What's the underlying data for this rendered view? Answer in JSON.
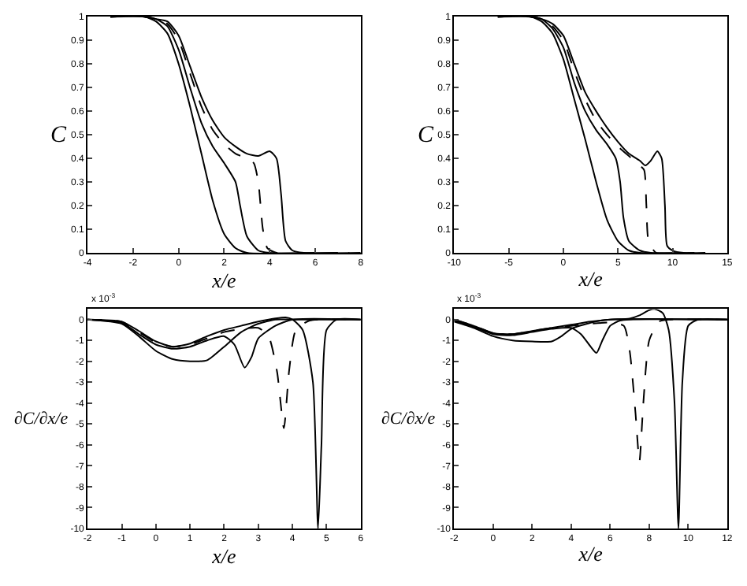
{
  "chart_data": [
    {
      "type": "line",
      "xlabel": "x/e",
      "ylabel": "C",
      "xlim": [
        -4,
        8
      ],
      "xticks": [
        -4,
        -2,
        0,
        2,
        4,
        6,
        8
      ],
      "ylim": [
        0,
        1
      ],
      "yticks": [
        0,
        0.1,
        0.2,
        0.3,
        0.4,
        0.5,
        0.6,
        0.7,
        0.8,
        0.9,
        1
      ],
      "series": [
        {
          "color": "#000000",
          "line_style": "solid",
          "x": [
            -3,
            -1.5,
            -1,
            -0.5,
            0,
            0.5,
            1,
            1.5,
            2,
            2.5,
            3,
            6
          ],
          "values": [
            1,
            1,
            0.98,
            0.93,
            0.8,
            0.62,
            0.42,
            0.22,
            0.08,
            0.02,
            0,
            0
          ]
        },
        {
          "color": "#000000",
          "line_style": "solid",
          "x": [
            -3,
            -1.5,
            -1,
            -0.5,
            0,
            0.5,
            1,
            1.5,
            2,
            2.5,
            2.7,
            3,
            3.5,
            4,
            7
          ],
          "values": [
            1,
            1,
            0.99,
            0.96,
            0.86,
            0.7,
            0.55,
            0.45,
            0.38,
            0.3,
            0.2,
            0.07,
            0.01,
            0,
            0
          ]
        },
        {
          "color": "#000000",
          "line_style": "dashed",
          "x": [
            -3,
            -1.5,
            -1,
            -0.5,
            0,
            0.5,
            1,
            1.5,
            2,
            2.5,
            3,
            3.3,
            3.5,
            3.7,
            3.9,
            4.3,
            7.5
          ],
          "values": [
            1,
            1,
            0.99,
            0.97,
            0.9,
            0.76,
            0.62,
            0.52,
            0.46,
            0.42,
            0.4,
            0.38,
            0.3,
            0.1,
            0.02,
            0,
            0
          ]
        },
        {
          "color": "#000000",
          "line_style": "solid",
          "x": [
            -3,
            -1.5,
            -1,
            -0.5,
            0,
            0.5,
            1,
            1.5,
            2,
            2.5,
            3,
            3.5,
            4,
            4.3,
            4.5,
            4.7,
            5,
            5.5,
            8
          ],
          "values": [
            1,
            1,
            0.99,
            0.98,
            0.92,
            0.79,
            0.66,
            0.56,
            0.49,
            0.45,
            0.42,
            0.41,
            0.43,
            0.4,
            0.25,
            0.05,
            0.01,
            0,
            0
          ]
        }
      ]
    },
    {
      "type": "line",
      "xlabel": "x/e",
      "ylabel": "C",
      "xlim": [
        -10,
        15
      ],
      "xticks": [
        -10,
        -5,
        0,
        5,
        10,
        15
      ],
      "ylim": [
        0,
        1
      ],
      "yticks": [
        0,
        0.1,
        0.2,
        0.3,
        0.4,
        0.5,
        0.6,
        0.7,
        0.8,
        0.9,
        1
      ],
      "series": [
        {
          "color": "#000000",
          "line_style": "solid",
          "x": [
            -6,
            -3,
            -2,
            -1,
            0,
            1,
            2,
            3,
            4,
            5,
            6,
            7,
            11
          ],
          "values": [
            1,
            1,
            0.98,
            0.93,
            0.82,
            0.65,
            0.48,
            0.3,
            0.14,
            0.05,
            0.01,
            0,
            0
          ]
        },
        {
          "color": "#000000",
          "line_style": "solid",
          "x": [
            -6,
            -3,
            -2,
            -1,
            0,
            1,
            2,
            3,
            4,
            4.8,
            5.2,
            5.5,
            6,
            7,
            8,
            12
          ],
          "values": [
            1,
            1,
            0.99,
            0.95,
            0.87,
            0.72,
            0.6,
            0.52,
            0.46,
            0.4,
            0.3,
            0.15,
            0.05,
            0.01,
            0,
            0
          ]
        },
        {
          "color": "#000000",
          "line_style": "dashed",
          "x": [
            -6,
            -3,
            -2,
            -1,
            0,
            1,
            2,
            3,
            4,
            5,
            6,
            7,
            7.4,
            7.6,
            7.8,
            8.5,
            12.5
          ],
          "values": [
            1,
            1,
            0.99,
            0.96,
            0.9,
            0.77,
            0.65,
            0.56,
            0.5,
            0.45,
            0.41,
            0.37,
            0.35,
            0.2,
            0.05,
            0,
            0
          ]
        },
        {
          "color": "#000000",
          "line_style": "solid",
          "x": [
            -6,
            -3,
            -2,
            -1,
            0,
            1,
            2,
            3,
            4,
            5,
            6,
            7,
            7.5,
            8,
            8.6,
            9,
            9.3,
            9.5,
            10,
            11,
            13
          ],
          "values": [
            1,
            1,
            0.99,
            0.97,
            0.92,
            0.8,
            0.68,
            0.6,
            0.53,
            0.47,
            0.42,
            0.39,
            0.37,
            0.39,
            0.43,
            0.4,
            0.2,
            0.03,
            0.01,
            0,
            0
          ]
        }
      ]
    },
    {
      "type": "line",
      "xlabel": "x/e",
      "ylabel": "∂C/∂x/e",
      "annotations": [
        "x 10$^{-3}$"
      ],
      "xlim": [
        -2,
        6
      ],
      "xticks": [
        -2,
        -1,
        0,
        1,
        2,
        3,
        4,
        5,
        6
      ],
      "ylim": [
        -10,
        0.5
      ],
      "yticks": [
        -10,
        -9,
        -8,
        -7,
        -6,
        -5,
        -4,
        -3,
        -2,
        -1,
        0
      ],
      "series": [
        {
          "color": "#000000",
          "line_style": "solid",
          "x": [
            -2,
            -1,
            -0.5,
            0,
            0.5,
            1,
            1.5,
            2,
            2.5,
            3,
            3.5,
            4,
            6
          ],
          "values": [
            0,
            -0.2,
            -0.8,
            -1.5,
            -1.9,
            -2,
            -1.95,
            -1.3,
            -0.6,
            -0.2,
            0,
            0,
            0
          ]
        },
        {
          "color": "#000000",
          "line_style": "solid",
          "x": [
            -2,
            -1,
            -0.5,
            0,
            0.5,
            1,
            1.5,
            2,
            2.3,
            2.6,
            2.8,
            3,
            3.5,
            4,
            6
          ],
          "values": [
            0,
            -0.15,
            -0.7,
            -1.2,
            -1.4,
            -1.3,
            -1,
            -0.8,
            -1.2,
            -2.3,
            -1.8,
            -0.9,
            -0.3,
            0,
            0
          ]
        },
        {
          "color": "#000000",
          "line_style": "dashed",
          "x": [
            -2,
            -1,
            -0.5,
            0,
            0.5,
            1,
            1.5,
            2,
            2.5,
            3,
            3.3,
            3.55,
            3.75,
            3.9,
            4.1,
            4.5,
            6
          ],
          "values": [
            0,
            -0.1,
            -0.6,
            -1.1,
            -1.3,
            -1.2,
            -0.9,
            -0.6,
            -0.45,
            -0.4,
            -0.8,
            -2.5,
            -5.2,
            -2.5,
            -0.5,
            -0.05,
            0
          ]
        },
        {
          "color": "#000000",
          "line_style": "solid",
          "x": [
            -2,
            -1,
            -0.5,
            0,
            0.5,
            1,
            1.5,
            2,
            2.5,
            3,
            3.5,
            3.8,
            4,
            4.3,
            4.6,
            4.75,
            4.85,
            5,
            5.3,
            6
          ],
          "values": [
            0,
            -0.1,
            -0.55,
            -1.05,
            -1.3,
            -1.15,
            -0.8,
            -0.5,
            -0.3,
            -0.1,
            0.05,
            0.1,
            0,
            -0.5,
            -3,
            -10,
            -6,
            -0.5,
            0,
            0
          ]
        }
      ]
    },
    {
      "type": "line",
      "xlabel": "x/e",
      "ylabel": "∂C/∂x/e",
      "annotations": [
        "x 10$^{-3}$"
      ],
      "xlim": [
        -2,
        12
      ],
      "xticks": [
        -2,
        0,
        2,
        4,
        6,
        8,
        10,
        12
      ],
      "ylim": [
        -10,
        0.5
      ],
      "yticks": [
        -10,
        -9,
        -8,
        -7,
        -6,
        -5,
        -4,
        -3,
        -2,
        -1,
        0
      ],
      "series": [
        {
          "color": "#000000",
          "line_style": "solid",
          "x": [
            -2,
            -1,
            0,
            1,
            2,
            3,
            3.5,
            4,
            5,
            6,
            12
          ],
          "values": [
            -0.1,
            -0.4,
            -0.8,
            -1,
            -1.05,
            -1.05,
            -0.8,
            -0.45,
            -0.15,
            0,
            0
          ]
        },
        {
          "color": "#000000",
          "line_style": "solid",
          "x": [
            -2,
            -1,
            0,
            1,
            2,
            3,
            4,
            4.5,
            5,
            5.3,
            5.6,
            6,
            6.5,
            7,
            12
          ],
          "values": [
            -0.05,
            -0.35,
            -0.7,
            -0.75,
            -0.6,
            -0.45,
            -0.4,
            -0.7,
            -1.3,
            -1.6,
            -1,
            -0.3,
            -0.05,
            0,
            0
          ]
        },
        {
          "color": "#000000",
          "line_style": "dashed",
          "x": [
            -2,
            -1,
            0,
            1,
            2,
            3,
            4,
            5,
            6,
            6.7,
            7,
            7.3,
            7.5,
            7.7,
            8,
            8.5,
            9,
            12
          ],
          "values": [
            0,
            -0.3,
            -0.65,
            -0.7,
            -0.55,
            -0.4,
            -0.3,
            -0.2,
            -0.15,
            -0.3,
            -1.5,
            -4.5,
            -6.8,
            -4,
            -1,
            -0.1,
            0,
            0
          ]
        },
        {
          "color": "#000000",
          "line_style": "solid",
          "x": [
            -2,
            -1,
            0,
            1,
            2,
            3,
            4,
            5,
            6,
            7,
            7.5,
            8,
            8.3,
            8.7,
            9,
            9.3,
            9.5,
            9.7,
            10,
            10.5,
            12
          ],
          "values": [
            0,
            -0.3,
            -0.65,
            -0.7,
            -0.55,
            -0.4,
            -0.25,
            -0.1,
            0,
            0.05,
            0.2,
            0.45,
            0.5,
            0.3,
            -0.5,
            -4,
            -10,
            -3,
            -0.3,
            0,
            0
          ]
        }
      ]
    }
  ]
}
